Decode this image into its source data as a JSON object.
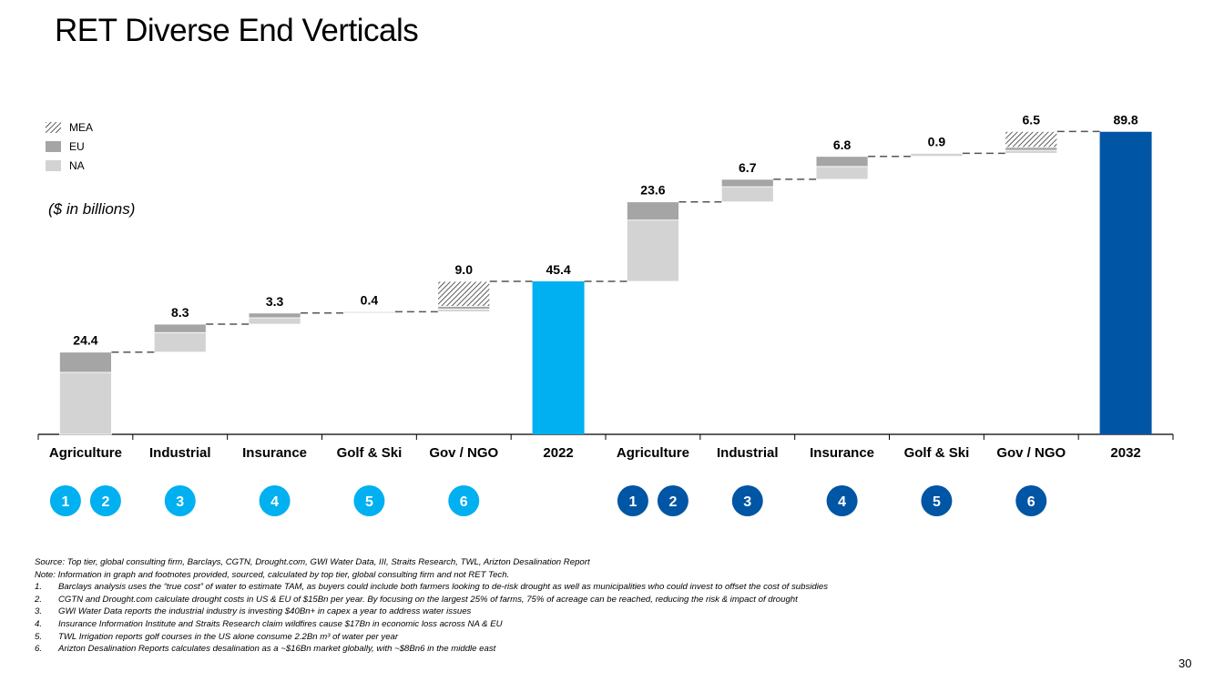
{
  "title": "RET Diverse End Verticals",
  "unit_label": "($ in billions)",
  "legend": [
    {
      "label": "MEA",
      "key": "MEA"
    },
    {
      "label": "EU",
      "key": "EU"
    },
    {
      "label": "NA",
      "key": "NA"
    }
  ],
  "colors": {
    "NA": "#d3d3d3",
    "EU": "#a5a5a5",
    "MEA_hatch": "#333333",
    "total_2022": "#00b0f0",
    "total_2032": "#0055a5",
    "circle_2022": "#00b0f0",
    "circle_2032": "#0055a5",
    "connector": "#555555"
  },
  "chart_data": {
    "type": "waterfall",
    "title": "RET Diverse End Verticals",
    "ylabel": "$ in billions",
    "ylim": [
      0,
      95
    ],
    "categories": [
      "Agriculture",
      "Industrial",
      "Insurance",
      "Golf & Ski",
      "Gov / NGO",
      "2022",
      "Agriculture",
      "Industrial",
      "Insurance",
      "Golf & Ski",
      "Gov / NGO",
      "2032"
    ],
    "labels": [
      "24.4",
      "8.3",
      "3.3",
      "0.4",
      "9.0",
      "45.4",
      "23.6",
      "6.7",
      "6.8",
      "0.9",
      "6.5",
      "89.8"
    ],
    "bars": [
      {
        "kind": "delta",
        "total": 24.4,
        "NA": 18.4,
        "EU": 6.0,
        "MEA": 0
      },
      {
        "kind": "delta",
        "total": 8.3,
        "NA": 5.8,
        "EU": 2.5,
        "MEA": 0
      },
      {
        "kind": "delta",
        "total": 3.3,
        "NA": 1.9,
        "EU": 1.4,
        "MEA": 0
      },
      {
        "kind": "delta",
        "total": 0.4,
        "NA": 0.4,
        "EU": 0,
        "MEA": 0
      },
      {
        "kind": "delta",
        "total": 9.0,
        "NA": 0.8,
        "EU": 0.8,
        "MEA": 7.4
      },
      {
        "kind": "total",
        "total": 45.4,
        "year": "2022"
      },
      {
        "kind": "delta",
        "total": 23.6,
        "NA": 18.2,
        "EU": 5.4,
        "MEA": 0
      },
      {
        "kind": "delta",
        "total": 6.7,
        "NA": 4.5,
        "EU": 2.2,
        "MEA": 0
      },
      {
        "kind": "delta",
        "total": 6.8,
        "NA": 3.8,
        "EU": 3.0,
        "MEA": 0
      },
      {
        "kind": "delta",
        "total": 0.9,
        "NA": 0.9,
        "EU": 0,
        "MEA": 0
      },
      {
        "kind": "delta",
        "total": 6.5,
        "NA": 0.9,
        "EU": 0.9,
        "MEA": 4.7
      },
      {
        "kind": "total",
        "total": 89.8,
        "year": "2032"
      }
    ],
    "footnote_markers": [
      {
        "category_index": 0,
        "numbers": [
          "1",
          "2"
        ],
        "period": "2022"
      },
      {
        "category_index": 1,
        "numbers": [
          "3"
        ],
        "period": "2022"
      },
      {
        "category_index": 2,
        "numbers": [
          "4"
        ],
        "period": "2022"
      },
      {
        "category_index": 3,
        "numbers": [
          "5"
        ],
        "period": "2022"
      },
      {
        "category_index": 4,
        "numbers": [
          "6"
        ],
        "period": "2022"
      },
      {
        "category_index": 6,
        "numbers": [
          "1",
          "2"
        ],
        "period": "2032"
      },
      {
        "category_index": 7,
        "numbers": [
          "3"
        ],
        "period": "2032"
      },
      {
        "category_index": 8,
        "numbers": [
          "4"
        ],
        "period": "2032"
      },
      {
        "category_index": 9,
        "numbers": [
          "5"
        ],
        "period": "2032"
      },
      {
        "category_index": 10,
        "numbers": [
          "6"
        ],
        "period": "2032"
      }
    ]
  },
  "notes": {
    "source": "Source: Top tier, global consulting firm, Barclays, CGTN, Drought.com, GWI Water Data, III, Straits Research, TWL, Arizton Desalination Report",
    "note": "Note: Information in graph and footnotes provided, sourced, calculated by top tier, global consulting firm and not RET Tech.",
    "footnotes": [
      {
        "num": "1.",
        "text": "Barclays analysis uses the “true cost” of water to estimate TAM, as buyers could include both farmers looking to de-risk drought as well as municipalities who could invest to offset the cost of subsidies"
      },
      {
        "num": "2.",
        "text": "CGTN and Drought.com calculate drought costs in US & EU of $15Bn per year. By focusing on the largest 25% of farms, 75% of acreage can be reached, reducing the risk & impact of drought"
      },
      {
        "num": "3.",
        "text": "GWI Water Data reports the industrial industry is investing $40Bn+ in capex a year to address water issues"
      },
      {
        "num": "4.",
        "text": "Insurance Information Institute and Straits Research claim wildfires cause $17Bn in economic loss across NA & EU"
      },
      {
        "num": "5.",
        "text": "TWL Irrigation reports golf courses in the US alone consume 2.2Bn m³ of water per year"
      },
      {
        "num": "6.",
        "text": "Arizton Desalination Reports calculates desalination as a ~$16Bn market globally, with ~$8Bn6 in the middle east"
      }
    ]
  },
  "page_number": "30"
}
